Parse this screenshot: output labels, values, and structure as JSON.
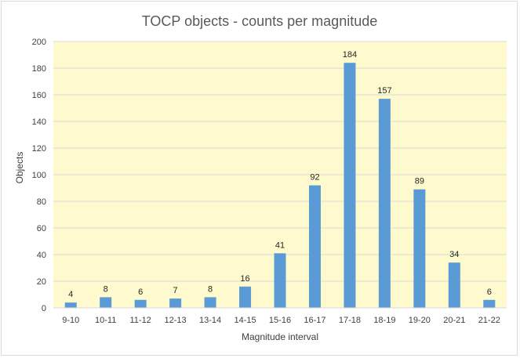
{
  "chart_data": {
    "type": "bar",
    "title": "TOCP objects - counts per magnitude",
    "xlabel": "Magnitude interval",
    "ylabel": "Objects",
    "categories": [
      "9-10",
      "10-11",
      "11-12",
      "12-13",
      "13-14",
      "14-15",
      "15-16",
      "16-17",
      "17-18",
      "18-19",
      "19-20",
      "20-21",
      "21-22"
    ],
    "values": [
      4,
      8,
      6,
      7,
      8,
      16,
      41,
      92,
      184,
      157,
      89,
      34,
      6
    ],
    "ylim": [
      0,
      200
    ],
    "yticks": [
      "0",
      "20",
      "40",
      "60",
      "80",
      "100",
      "120",
      "140",
      "160",
      "180",
      "200"
    ],
    "grid": true,
    "legend": "none"
  },
  "colors": {
    "bar": "#5b9bd5",
    "plot_background": "#fffacd",
    "gridline": "#d9d9d9"
  }
}
